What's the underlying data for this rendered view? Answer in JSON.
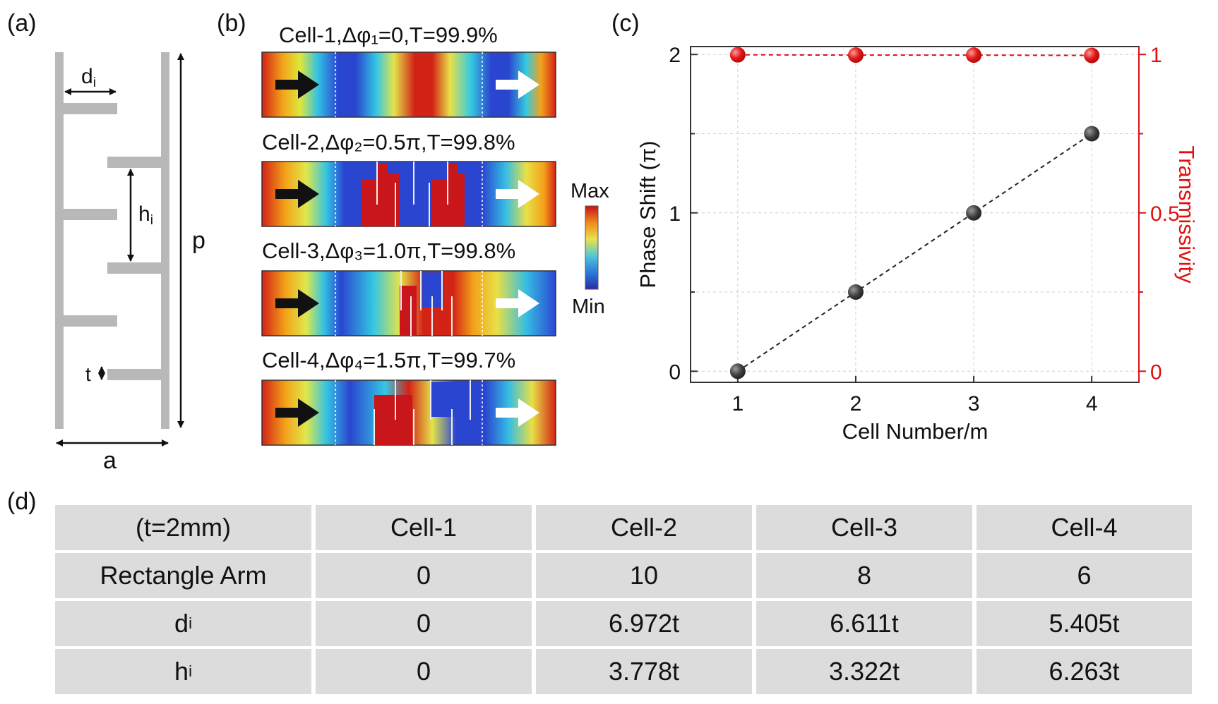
{
  "panels": {
    "a": "(a)",
    "b": "(b)",
    "c": "(c)",
    "d": "(d)"
  },
  "diagram_a": {
    "di": "d",
    "di_sub": "i",
    "hi": "h",
    "hi_sub": "i",
    "p": "p",
    "t": "t",
    "a": "a"
  },
  "panel_b": {
    "cells": [
      {
        "label": "Cell-1,Δφ₁=0,T=99.9%"
      },
      {
        "label": "Cell-2,Δφ₂=0.5π,T=99.8%"
      },
      {
        "label": "Cell-3,Δφ₃=1.0π,T=99.8%"
      },
      {
        "label": "Cell-4,Δφ₄=1.5π,T=99.7%"
      }
    ],
    "colorbar": {
      "max": "Max",
      "min": "Min"
    }
  },
  "chart_data": {
    "type": "scatter",
    "x": [
      1,
      2,
      3,
      4
    ],
    "series": [
      {
        "axis": "left",
        "values": [
          0,
          0.5,
          1.0,
          1.5
        ],
        "color": "#444444"
      },
      {
        "axis": "right",
        "values": [
          0.999,
          0.998,
          0.998,
          0.997
        ],
        "color": "#e01010"
      }
    ],
    "xlabel": "Cell Number/m",
    "ylabel": "Phase Shift (π)",
    "y2label": "Transmissivity",
    "xticks": [
      "1",
      "2",
      "3",
      "4"
    ],
    "yticks": [
      "0",
      "1",
      "2"
    ],
    "y2ticks": [
      "0",
      "0.5",
      "1"
    ],
    "xlim": [
      0.6,
      4.4
    ],
    "ylim": [
      -0.07,
      2.05
    ],
    "y2lim": [
      -0.035,
      1.025
    ],
    "grid": true
  },
  "table": {
    "header": [
      "(t=2mm)",
      "Cell-1",
      "Cell-2",
      "Cell-3",
      "Cell-4"
    ],
    "rows": [
      {
        "label": "Rectangle Arm",
        "values": [
          "0",
          "10",
          "8",
          "6"
        ]
      },
      {
        "label": "d",
        "sub": "i",
        "values": [
          "0",
          "6.972t",
          "6.611t",
          "5.405t"
        ]
      },
      {
        "label": "h",
        "sub": "i",
        "values": [
          "0",
          "3.778t",
          "3.322t",
          "6.263t"
        ]
      }
    ]
  },
  "colors": {
    "accent_red": "#e01010",
    "point_gray": "#444444",
    "table_bg": "#dcdcdc",
    "diagram_gray": "#b8b8b8"
  }
}
